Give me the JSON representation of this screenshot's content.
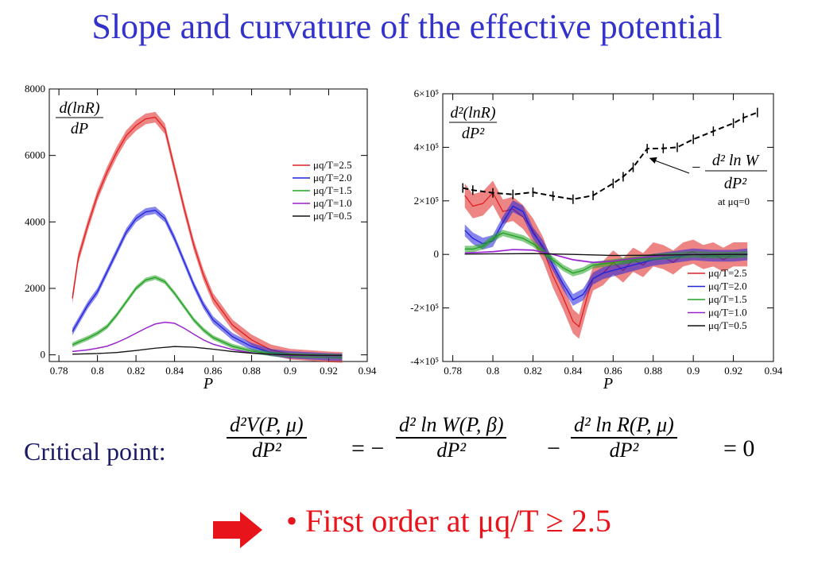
{
  "title": "Slope and curvature of the effective potential",
  "eq": {
    "label": "Critical point:",
    "lhs_num": "d²V(P, μ)",
    "lhs_den": "dP²",
    "eq1": "= −",
    "t1_num": "d² ln W(P, β)",
    "t1_den": "dP²",
    "minus": "−",
    "t2_num": "d² ln R(P, μ)",
    "t2_den": "dP²",
    "eq2": "= 0"
  },
  "bullet": {
    "text": "• First order at μq/T ≥ 2.5",
    "arrow_color": "#e8141b",
    "color": "#e8141b"
  },
  "chart_data": [
    {
      "type": "line",
      "ylabel_num": "d(lnR)",
      "ylabel_den": "dP",
      "xlabel": "P",
      "xlim": [
        0.775,
        0.94
      ],
      "ylim": [
        -200,
        8000
      ],
      "xticks": [
        "0.78",
        "0.8",
        "0.82",
        "0.84",
        "0.86",
        "0.88",
        "0.9",
        "0.92",
        "0.94"
      ],
      "xtick_vals": [
        0.78,
        0.8,
        0.82,
        0.84,
        0.86,
        0.88,
        0.9,
        0.92,
        0.94
      ],
      "yticks": [
        "0",
        "2000",
        "4000",
        "6000",
        "8000"
      ],
      "ytick_vals": [
        0,
        2000,
        4000,
        6000,
        8000
      ],
      "legend_position": "right",
      "series": [
        {
          "name": "μq/T=2.5",
          "color": "#e02020",
          "x": [
            0.787,
            0.79,
            0.795,
            0.8,
            0.805,
            0.81,
            0.815,
            0.82,
            0.825,
            0.83,
            0.835,
            0.84,
            0.845,
            0.85,
            0.855,
            0.86,
            0.87,
            0.88,
            0.89,
            0.9,
            0.91,
            0.92,
            0.927
          ],
          "y": [
            1700,
            2900,
            3900,
            4800,
            5500,
            6100,
            6600,
            6900,
            7100,
            7150,
            6800,
            5600,
            4400,
            3300,
            2400,
            1700,
            900,
            450,
            150,
            20,
            -20,
            -60,
            -80
          ]
        },
        {
          "name": "μq/T=2.0",
          "color": "#2222dd",
          "x": [
            0.787,
            0.79,
            0.795,
            0.8,
            0.805,
            0.81,
            0.815,
            0.82,
            0.825,
            0.83,
            0.835,
            0.84,
            0.845,
            0.85,
            0.855,
            0.86,
            0.87,
            0.88,
            0.89,
            0.9,
            0.91,
            0.92,
            0.927
          ],
          "y": [
            700,
            1000,
            1500,
            1900,
            2500,
            3100,
            3700,
            4100,
            4300,
            4350,
            4100,
            3500,
            2800,
            2100,
            1500,
            1050,
            550,
            250,
            70,
            0,
            -30,
            -60,
            -70
          ]
        },
        {
          "name": "μq/T=1.5",
          "color": "#22a022",
          "x": [
            0.787,
            0.79,
            0.795,
            0.8,
            0.805,
            0.81,
            0.815,
            0.82,
            0.825,
            0.83,
            0.835,
            0.84,
            0.845,
            0.85,
            0.855,
            0.86,
            0.87,
            0.88,
            0.89,
            0.9,
            0.91,
            0.92,
            0.927
          ],
          "y": [
            300,
            380,
            500,
            650,
            850,
            1200,
            1600,
            2000,
            2250,
            2330,
            2200,
            1850,
            1450,
            1050,
            750,
            520,
            260,
            110,
            30,
            -10,
            -30,
            -40,
            -50
          ]
        },
        {
          "name": "μq/T=1.0",
          "color": "#9922cc",
          "x": [
            0.787,
            0.79,
            0.795,
            0.8,
            0.805,
            0.81,
            0.815,
            0.82,
            0.825,
            0.83,
            0.835,
            0.84,
            0.845,
            0.85,
            0.855,
            0.86,
            0.87,
            0.88,
            0.89,
            0.9,
            0.91,
            0.92,
            0.927
          ],
          "y": [
            100,
            120,
            150,
            200,
            260,
            370,
            500,
            650,
            800,
            930,
            980,
            950,
            800,
            620,
            450,
            320,
            160,
            60,
            10,
            -10,
            -20,
            -30,
            -30
          ]
        },
        {
          "name": "μq/T=0.5",
          "color": "#111111",
          "x": [
            0.787,
            0.8,
            0.81,
            0.82,
            0.83,
            0.84,
            0.85,
            0.86,
            0.87,
            0.88,
            0.89,
            0.9,
            0.91,
            0.92,
            0.927
          ],
          "y": [
            20,
            40,
            70,
            130,
            200,
            250,
            230,
            170,
            100,
            50,
            15,
            0,
            -10,
            -15,
            -15
          ]
        }
      ],
      "band_halfwidth": [
        160,
        110,
        70,
        20,
        5
      ]
    },
    {
      "type": "line",
      "ylabel_num": "d²(lnR)",
      "ylabel_den": "dP²",
      "xlabel": "P",
      "xlim": [
        0.775,
        0.94
      ],
      "ylim": [
        -400000,
        600000
      ],
      "xticks": [
        "0.78",
        "0.8",
        "0.82",
        "0.84",
        "0.86",
        "0.88",
        "0.9",
        "0.92",
        "0.94"
      ],
      "xtick_vals": [
        0.78,
        0.8,
        0.82,
        0.84,
        0.86,
        0.88,
        0.9,
        0.92,
        0.94
      ],
      "yticks": [
        "-4×10⁵",
        "-2×10⁵",
        "0",
        "2×10⁵",
        "4×10⁵",
        "6×10⁵"
      ],
      "ytick_vals": [
        -400000,
        -200000,
        0,
        200000,
        400000,
        600000
      ],
      "legend_position": "bottom-right",
      "annotation": {
        "num": "d² ln W",
        "den": "dP²",
        "prefix": "−",
        "note": "at μq=0",
        "arrow_to_x": 0.878,
        "arrow_to_y": 360000
      },
      "dashed": {
        "name": "-d² ln W / dP² at μq=0",
        "color": "#000000",
        "x": [
          0.785,
          0.79,
          0.8,
          0.81,
          0.82,
          0.83,
          0.84,
          0.85,
          0.86,
          0.865,
          0.87,
          0.877,
          0.885,
          0.892,
          0.9,
          0.91,
          0.92,
          0.925,
          0.932
        ],
        "y": [
          248000,
          240000,
          230000,
          224000,
          232000,
          218000,
          206000,
          220000,
          265000,
          290000,
          325000,
          395000,
          396000,
          400000,
          430000,
          460000,
          490000,
          510000,
          530000
        ]
      },
      "series": [
        {
          "name": "μq/T=2.5",
          "color": "#e02020",
          "x": [
            0.786,
            0.79,
            0.795,
            0.8,
            0.805,
            0.81,
            0.815,
            0.82,
            0.825,
            0.83,
            0.835,
            0.84,
            0.843,
            0.847,
            0.85,
            0.855,
            0.86,
            0.865,
            0.87,
            0.875,
            0.88,
            0.885,
            0.89,
            0.895,
            0.9,
            0.905,
            0.91,
            0.915,
            0.92,
            0.927
          ],
          "y": [
            220000,
            180000,
            190000,
            230000,
            160000,
            170000,
            140000,
            90000,
            20000,
            -80000,
            -160000,
            -250000,
            -270000,
            -160000,
            -90000,
            -70000,
            -30000,
            -60000,
            -20000,
            -40000,
            0,
            -10000,
            -30000,
            0,
            10000,
            -10000,
            0,
            -20000,
            0,
            0
          ]
        },
        {
          "name": "μq/T=2.0",
          "color": "#2222dd",
          "x": [
            0.786,
            0.79,
            0.795,
            0.8,
            0.805,
            0.81,
            0.815,
            0.82,
            0.825,
            0.83,
            0.835,
            0.84,
            0.845,
            0.85,
            0.855,
            0.86,
            0.87,
            0.88,
            0.89,
            0.9,
            0.91,
            0.92,
            0.927
          ],
          "y": [
            90000,
            60000,
            40000,
            50000,
            120000,
            180000,
            160000,
            80000,
            30000,
            -40000,
            -110000,
            -170000,
            -150000,
            -90000,
            -70000,
            -60000,
            -40000,
            -20000,
            -10000,
            0,
            -5000,
            -5000,
            0
          ]
        },
        {
          "name": "μq/T=1.5",
          "color": "#22a022",
          "x": [
            0.786,
            0.79,
            0.795,
            0.8,
            0.805,
            0.81,
            0.815,
            0.82,
            0.825,
            0.83,
            0.835,
            0.84,
            0.845,
            0.85,
            0.86,
            0.87,
            0.88,
            0.89,
            0.9,
            0.91,
            0.92,
            0.927
          ],
          "y": [
            20000,
            20000,
            30000,
            60000,
            80000,
            70000,
            60000,
            40000,
            10000,
            -20000,
            -50000,
            -70000,
            -60000,
            -40000,
            -30000,
            -20000,
            -10000,
            -5000,
            0,
            -3000,
            -3000,
            0
          ]
        },
        {
          "name": "μq/T=1.0",
          "color": "#9922cc",
          "x": [
            0.786,
            0.8,
            0.81,
            0.82,
            0.83,
            0.84,
            0.85,
            0.86,
            0.87,
            0.88,
            0.89,
            0.9,
            0.91,
            0.92,
            0.927
          ],
          "y": [
            5000,
            10000,
            18000,
            16000,
            0,
            -20000,
            -30000,
            -25000,
            -15000,
            -8000,
            -3000,
            0,
            0,
            0,
            0
          ]
        },
        {
          "name": "μq/T=0.5",
          "color": "#111111",
          "x": [
            0.786,
            0.8,
            0.82,
            0.84,
            0.86,
            0.88,
            0.9,
            0.92,
            0.927
          ],
          "y": [
            1000,
            2000,
            3000,
            0,
            -4000,
            -3000,
            -1000,
            0,
            0
          ]
        }
      ],
      "band_halfwidth": [
        45000,
        22000,
        12000,
        3000,
        1000
      ]
    }
  ]
}
